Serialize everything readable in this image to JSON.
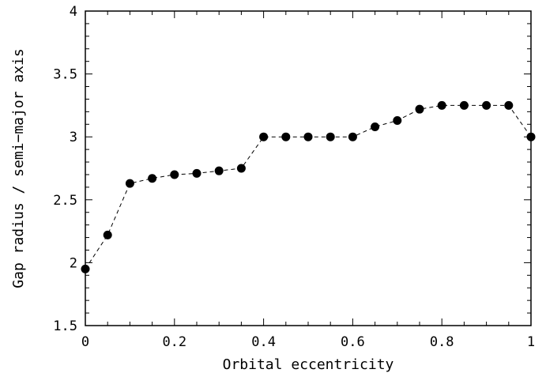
{
  "chart_data": {
    "type": "line",
    "title": "",
    "xlabel": "Orbital eccentricity",
    "ylabel": "Gap radius / semi−major axis",
    "xlim": [
      0,
      1
    ],
    "ylim": [
      1.5,
      4
    ],
    "x_ticks": [
      0,
      0.2,
      0.4,
      0.6,
      0.8,
      1
    ],
    "x_tick_labels": [
      "0",
      "0.2",
      "0.4",
      "0.6",
      "0.8",
      "1"
    ],
    "y_ticks": [
      1.5,
      2,
      2.5,
      3,
      3.5,
      4
    ],
    "y_tick_labels": [
      "1.5",
      "2",
      "2.5",
      "3",
      "3.5",
      "4"
    ],
    "grid": false,
    "line_style": "dashed",
    "marker": "filled-circle",
    "color": "#000000",
    "series": [
      {
        "x": [
          0,
          0.05,
          0.1,
          0.15,
          0.2,
          0.25,
          0.3,
          0.35,
          0.4,
          0.45,
          0.5,
          0.55,
          0.6,
          0.65,
          0.7,
          0.75,
          0.8,
          0.85,
          0.9,
          0.95,
          1.0
        ],
        "y": [
          1.95,
          2.22,
          2.63,
          2.67,
          2.7,
          2.71,
          2.73,
          2.75,
          3.0,
          3.0,
          3.0,
          3.0,
          3.0,
          3.08,
          3.13,
          3.22,
          3.25,
          3.25,
          3.25,
          3.25,
          3.0
        ]
      }
    ]
  }
}
